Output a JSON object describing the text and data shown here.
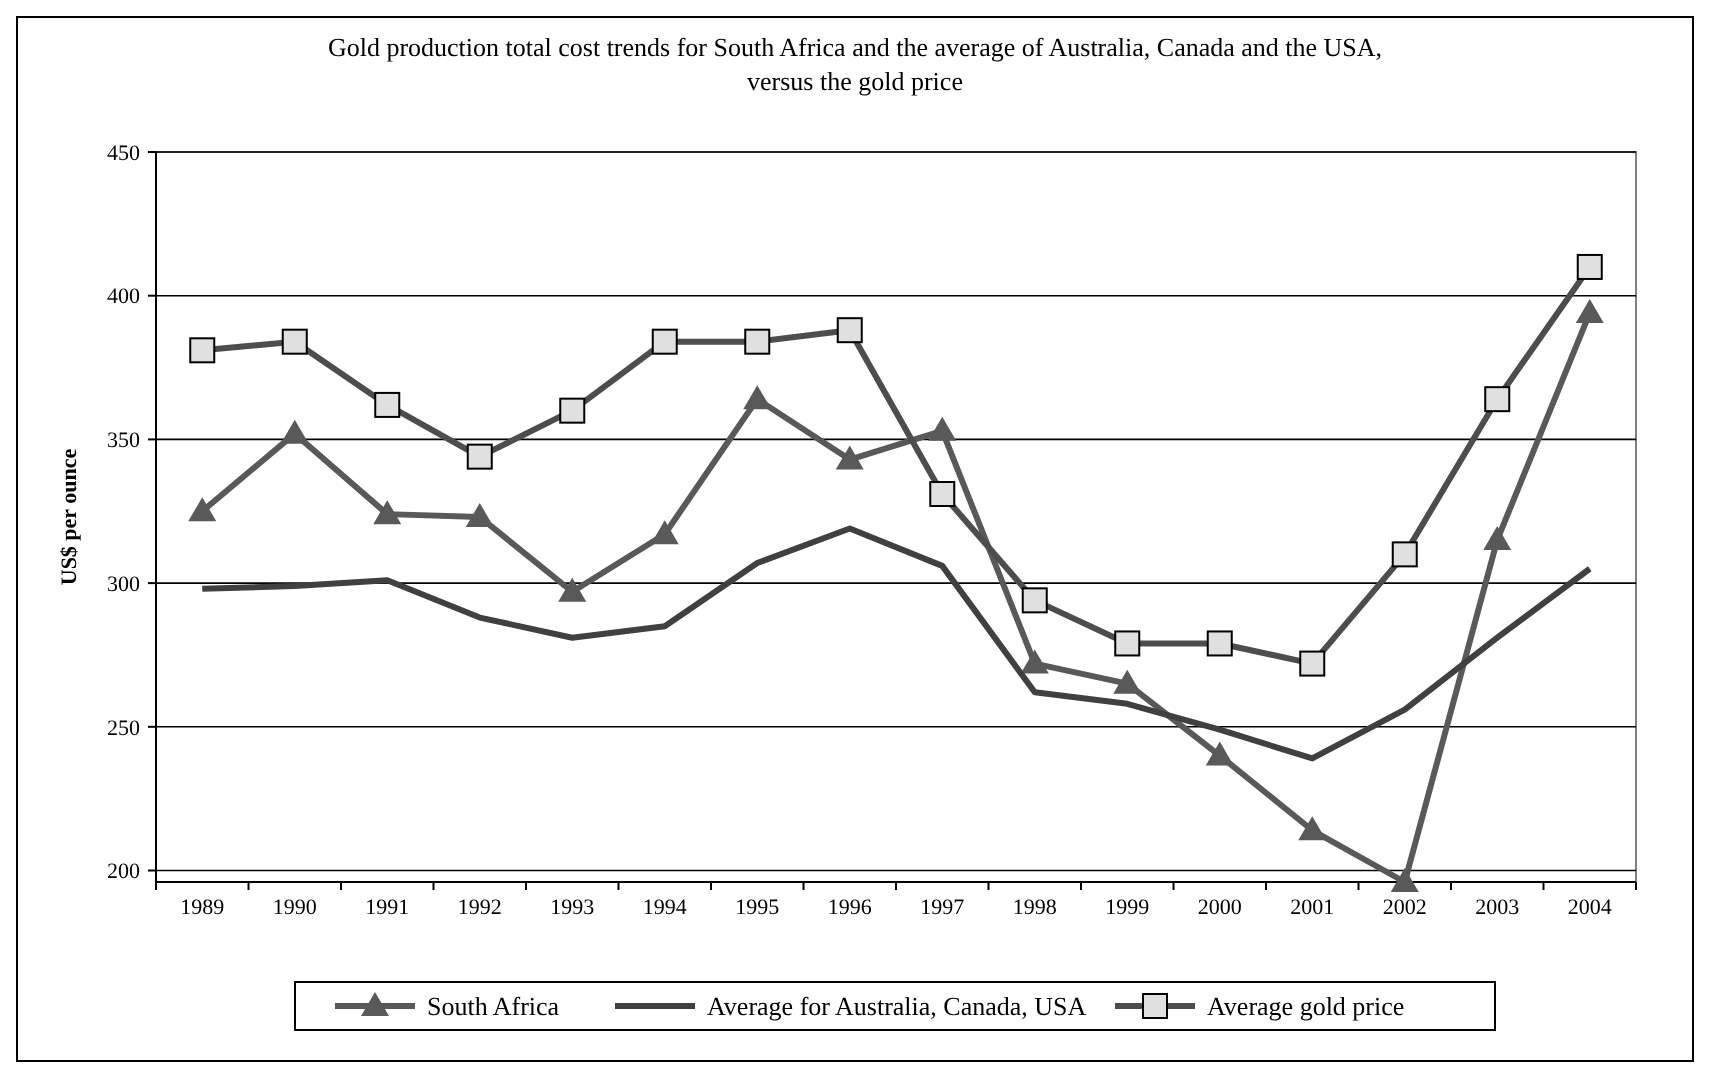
{
  "chart_data": {
    "type": "line",
    "title": "Gold production total cost trends for South Africa and the average of Australia, Canada and the USA, versus the gold price",
    "ylabel": "US$ per ounce",
    "categories": [
      "1989",
      "1990",
      "1991",
      "1992",
      "1993",
      "1994",
      "1995",
      "1996",
      "1997",
      "1998",
      "1999",
      "2000",
      "2001",
      "2002",
      "2003",
      "2004"
    ],
    "series": [
      {
        "name": "South Africa",
        "color": "#595959",
        "marker": "triangle",
        "values": [
          325,
          352,
          324,
          323,
          297,
          317,
          364,
          343,
          353,
          272,
          265,
          240,
          214,
          196,
          315,
          394
        ]
      },
      {
        "name": "Average for Australia, Canada, USA",
        "color": "#404040",
        "marker": "none",
        "values": [
          298,
          299,
          301,
          288,
          281,
          285,
          307,
          319,
          306,
          262,
          258,
          249,
          239,
          256,
          281,
          305
        ]
      },
      {
        "name": "Average gold price",
        "color": "#4d4d4d",
        "marker": "square",
        "values": [
          381,
          384,
          362,
          344,
          360,
          384,
          384,
          388,
          331,
          294,
          279,
          279,
          272,
          310,
          364,
          410
        ]
      }
    ],
    "ylim": [
      196,
      450
    ],
    "yticks": [
      200,
      250,
      300,
      350,
      400,
      450
    ],
    "grid": "y",
    "legend": "bottom"
  }
}
